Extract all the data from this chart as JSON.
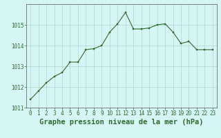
{
  "x": [
    0,
    1,
    2,
    3,
    4,
    5,
    6,
    7,
    8,
    9,
    10,
    11,
    12,
    13,
    14,
    15,
    16,
    17,
    18,
    19,
    20,
    21,
    22,
    23
  ],
  "y": [
    1011.4,
    1011.8,
    1012.2,
    1012.5,
    1012.7,
    1013.2,
    1013.2,
    1013.8,
    1013.85,
    1014.0,
    1014.65,
    1015.05,
    1015.6,
    1014.8,
    1014.8,
    1014.85,
    1015.0,
    1015.05,
    1014.65,
    1014.1,
    1014.2,
    1013.8,
    1013.8,
    1013.8
  ],
  "ylim": [
    1011,
    1016
  ],
  "xlim": [
    -0.5,
    23.5
  ],
  "yticks": [
    1011,
    1012,
    1013,
    1014,
    1015
  ],
  "xticks": [
    0,
    1,
    2,
    3,
    4,
    5,
    6,
    7,
    8,
    9,
    10,
    11,
    12,
    13,
    14,
    15,
    16,
    17,
    18,
    19,
    20,
    21,
    22,
    23
  ],
  "xlabel": "Graphe pression niveau de la mer (hPa)",
  "line_color": "#2d6b2d",
  "marker_color": "#2d6b2d",
  "bg_color": "#d6f5f5",
  "grid_color": "#aed4cc",
  "text_color": "#2d6b2d",
  "tick_fontsize": 5.5,
  "xlabel_fontsize": 7.5,
  "axis_color": "#555555"
}
